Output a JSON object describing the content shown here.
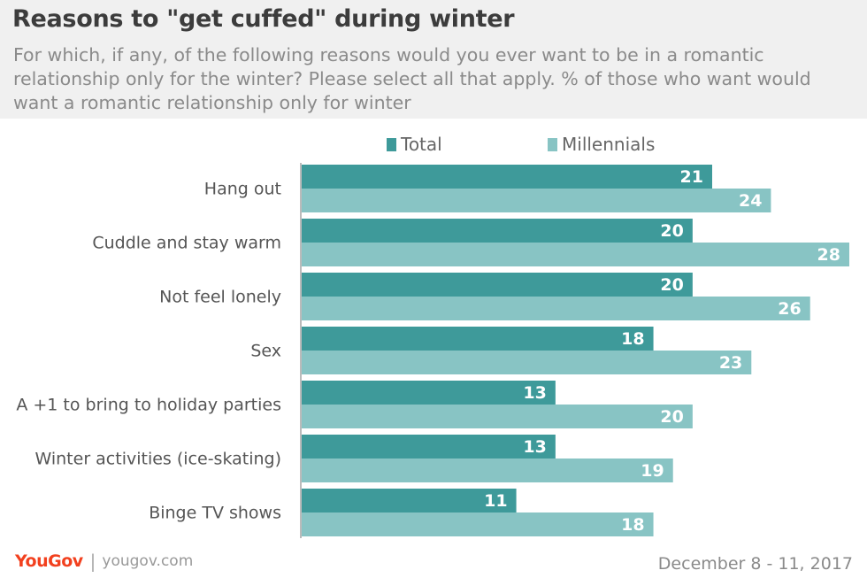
{
  "title": "Reasons to \"get cuffed\" during winter",
  "subtitle": "For which, if any, of the following reasons would you ever want to be in a romantic relationship only for the winter? Please select all that apply. % of those who want would want a romantic relationship only for winter",
  "colors": {
    "total": "#3e9a9a",
    "millennials": "#88c4c4",
    "axis": "#bbbbbb",
    "label": "#555555",
    "value_text": "#ffffff",
    "brand": "#f2401e"
  },
  "footer": {
    "brand": "YouGov",
    "separator": "|",
    "url": "yougov.com",
    "date": "December 8 - 11, 2017"
  },
  "chart_data": {
    "type": "bar",
    "orientation": "horizontal",
    "categories": [
      "Hang out",
      "Cuddle and stay warm",
      "Not feel lonely",
      "Sex",
      "A +1 to bring to holiday parties",
      "Winter activities (ice-skating)",
      "Binge TV shows"
    ],
    "series": [
      {
        "name": "Total",
        "values": [
          21,
          20,
          20,
          18,
          13,
          13,
          11
        ],
        "color": "#3e9a9a"
      },
      {
        "name": "Millennials",
        "values": [
          24,
          28,
          26,
          23,
          20,
          19,
          18
        ],
        "color": "#88c4c4"
      }
    ],
    "xlim": [
      0,
      28
    ],
    "legend_position": "top",
    "grid": false,
    "data_labels": true
  }
}
